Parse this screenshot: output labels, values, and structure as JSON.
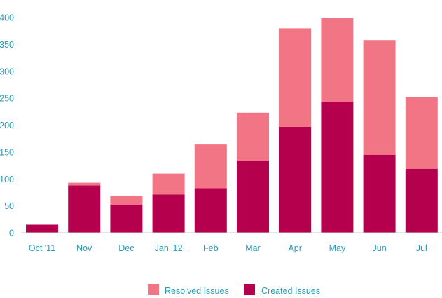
{
  "chart_data": {
    "type": "bar",
    "stacked": true,
    "categories": [
      "Oct '11",
      "Nov",
      "Dec",
      "Jan '12",
      "Feb",
      "Mar",
      "Apr",
      "May",
      "Jun",
      "Jul"
    ],
    "series": [
      {
        "name": "Created Issues",
        "color": "#b5004d",
        "values": [
          15,
          88,
          52,
          71,
          83,
          134,
          197,
          244,
          145,
          119
        ]
      },
      {
        "name": "Resolved Issues",
        "color": "#f27585",
        "values": [
          0,
          5,
          16,
          39,
          81,
          89,
          183,
          155,
          213,
          133
        ]
      }
    ],
    "yticks": [
      0,
      50,
      100,
      150,
      200,
      250,
      300,
      350,
      400
    ],
    "ylim": [
      0,
      400
    ],
    "legend": {
      "position": "bottom",
      "items": [
        {
          "label": "Resolved Issues",
          "color": "#f27585"
        },
        {
          "label": "Created Issues",
          "color": "#b5004d"
        }
      ]
    },
    "grid": false
  }
}
